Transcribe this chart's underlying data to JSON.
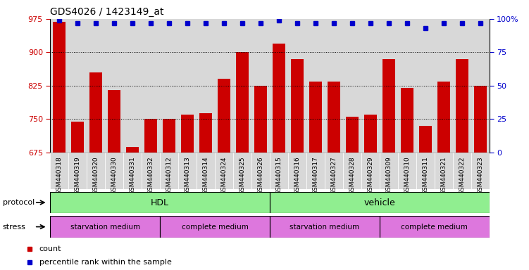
{
  "title": "GDS4026 / 1423149_at",
  "categories": [
    "GSM440318",
    "GSM440319",
    "GSM440320",
    "GSM440330",
    "GSM440331",
    "GSM440332",
    "GSM440312",
    "GSM440313",
    "GSM440314",
    "GSM440324",
    "GSM440325",
    "GSM440326",
    "GSM440315",
    "GSM440316",
    "GSM440317",
    "GSM440327",
    "GSM440328",
    "GSM440329",
    "GSM440309",
    "GSM440310",
    "GSM440311",
    "GSM440321",
    "GSM440322",
    "GSM440323"
  ],
  "bar_values": [
    968,
    745,
    855,
    815,
    688,
    750,
    750,
    760,
    763,
    840,
    900,
    825,
    920,
    885,
    835,
    835,
    755,
    760,
    885,
    820,
    735,
    835,
    885,
    825
  ],
  "percentile_values": [
    99,
    97,
    97,
    97,
    97,
    97,
    97,
    97,
    97,
    97,
    97,
    97,
    99,
    97,
    97,
    97,
    97,
    97,
    97,
    97,
    93,
    97,
    97,
    97
  ],
  "bar_color": "#cc0000",
  "percentile_color": "#0000cc",
  "ylim_left": [
    675,
    975
  ],
  "ylim_right": [
    0,
    100
  ],
  "yticks_left": [
    675,
    750,
    825,
    900,
    975
  ],
  "yticks_right": [
    0,
    25,
    50,
    75,
    100
  ],
  "grid_values": [
    750,
    825,
    900
  ],
  "protocol_groups": [
    {
      "label": "HDL",
      "start": 0,
      "end": 12,
      "color": "#90ee90"
    },
    {
      "label": "vehicle",
      "start": 12,
      "end": 24,
      "color": "#90ee90"
    }
  ],
  "stress_groups": [
    {
      "label": "starvation medium",
      "start": 0,
      "end": 6,
      "color": "#dd77dd"
    },
    {
      "label": "complete medium",
      "start": 6,
      "end": 12,
      "color": "#dd77dd"
    },
    {
      "label": "starvation medium",
      "start": 12,
      "end": 18,
      "color": "#dd77dd"
    },
    {
      "label": "complete medium",
      "start": 18,
      "end": 24,
      "color": "#dd77dd"
    }
  ],
  "bg_color": "#ffffff",
  "stripe_color": "#d8d8d8",
  "tick_label_bg": "#d8d8d8"
}
